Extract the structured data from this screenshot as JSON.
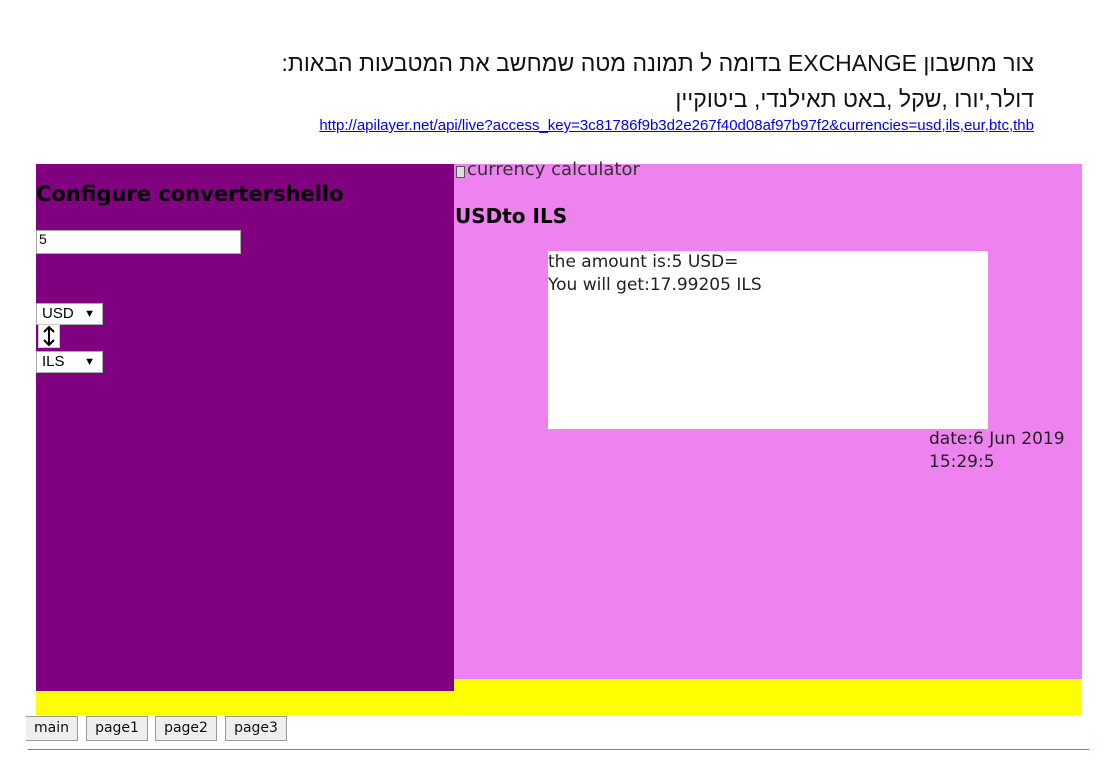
{
  "instructions": {
    "line1": "צור מחשבון EXCHANGE בדומה ל תמונה מטה שמחשב את המטבעות הבאות:",
    "line2": "דולר,יורו ,שקל ,באט תאילנדי, ביטוקיין",
    "api_url": "http://apilayer.net/api/live?access_key=3c81786f9b3d2e267f40d08af97b97f2&currencies=usd,ils,eur,btc,thb"
  },
  "converter": {
    "title": "Configure convertershello",
    "amount_value": "5",
    "from_currency": "USD",
    "to_currency": "ILS",
    "swap_icon": "up-down-arrow-icon"
  },
  "calculator": {
    "title": "currency calculator",
    "icon": "calculator-icon",
    "heading": "USDto ILS",
    "result_line1": "the amount is:5 USD=",
    "result_line2": "You will get:17.99205 ILS",
    "date_text": "date:6 Jun 2019 15:29:5"
  },
  "nav": {
    "tabs": [
      {
        "label": "main"
      },
      {
        "label": "page1"
      },
      {
        "label": "page2"
      },
      {
        "label": "page3"
      }
    ]
  },
  "colors": {
    "left_panel": "#800080",
    "right_panel": "#ee82ee",
    "footer_bar": "#ffff00",
    "link": "#0000ee"
  }
}
